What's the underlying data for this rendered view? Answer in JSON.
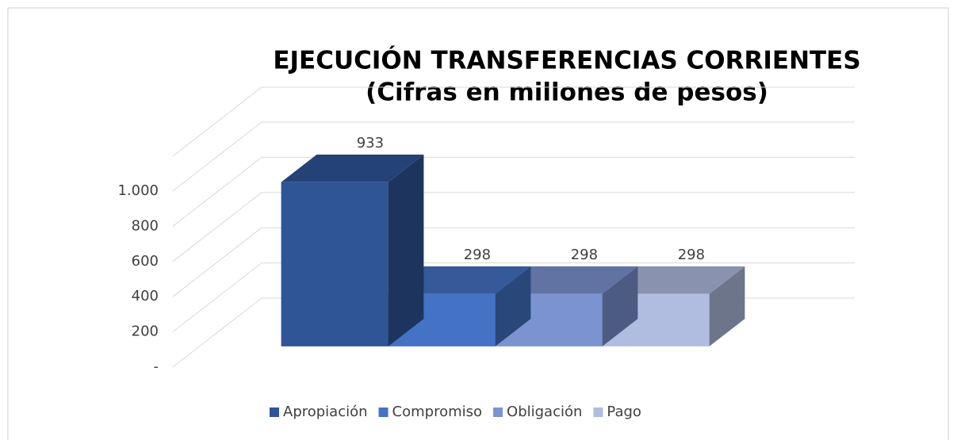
{
  "chart_data": {
    "type": "bar3d",
    "title": [
      "EJECUCIÓN TRANSFERENCIAS CORRIENTES",
      "(Cifras en millones de pesos)"
    ],
    "series": [
      {
        "name": "Apropiación",
        "color": "#2f5597",
        "values": [
          933
        ]
      },
      {
        "name": "Compromiso",
        "color": "#4472c4",
        "values": [
          298
        ]
      },
      {
        "name": "Obligación",
        "color": "#7b93d1",
        "values": [
          298
        ]
      },
      {
        "name": "Pago",
        "color": "#b0bde0",
        "values": [
          298
        ]
      }
    ],
    "ylim": [
      0,
      1000
    ],
    "yticks": [
      {
        "value": 0,
        "label": "-"
      },
      200,
      400,
      600,
      800,
      {
        "value": 1000,
        "label": "1.000"
      }
    ],
    "grid": true,
    "legend": "bottom"
  }
}
